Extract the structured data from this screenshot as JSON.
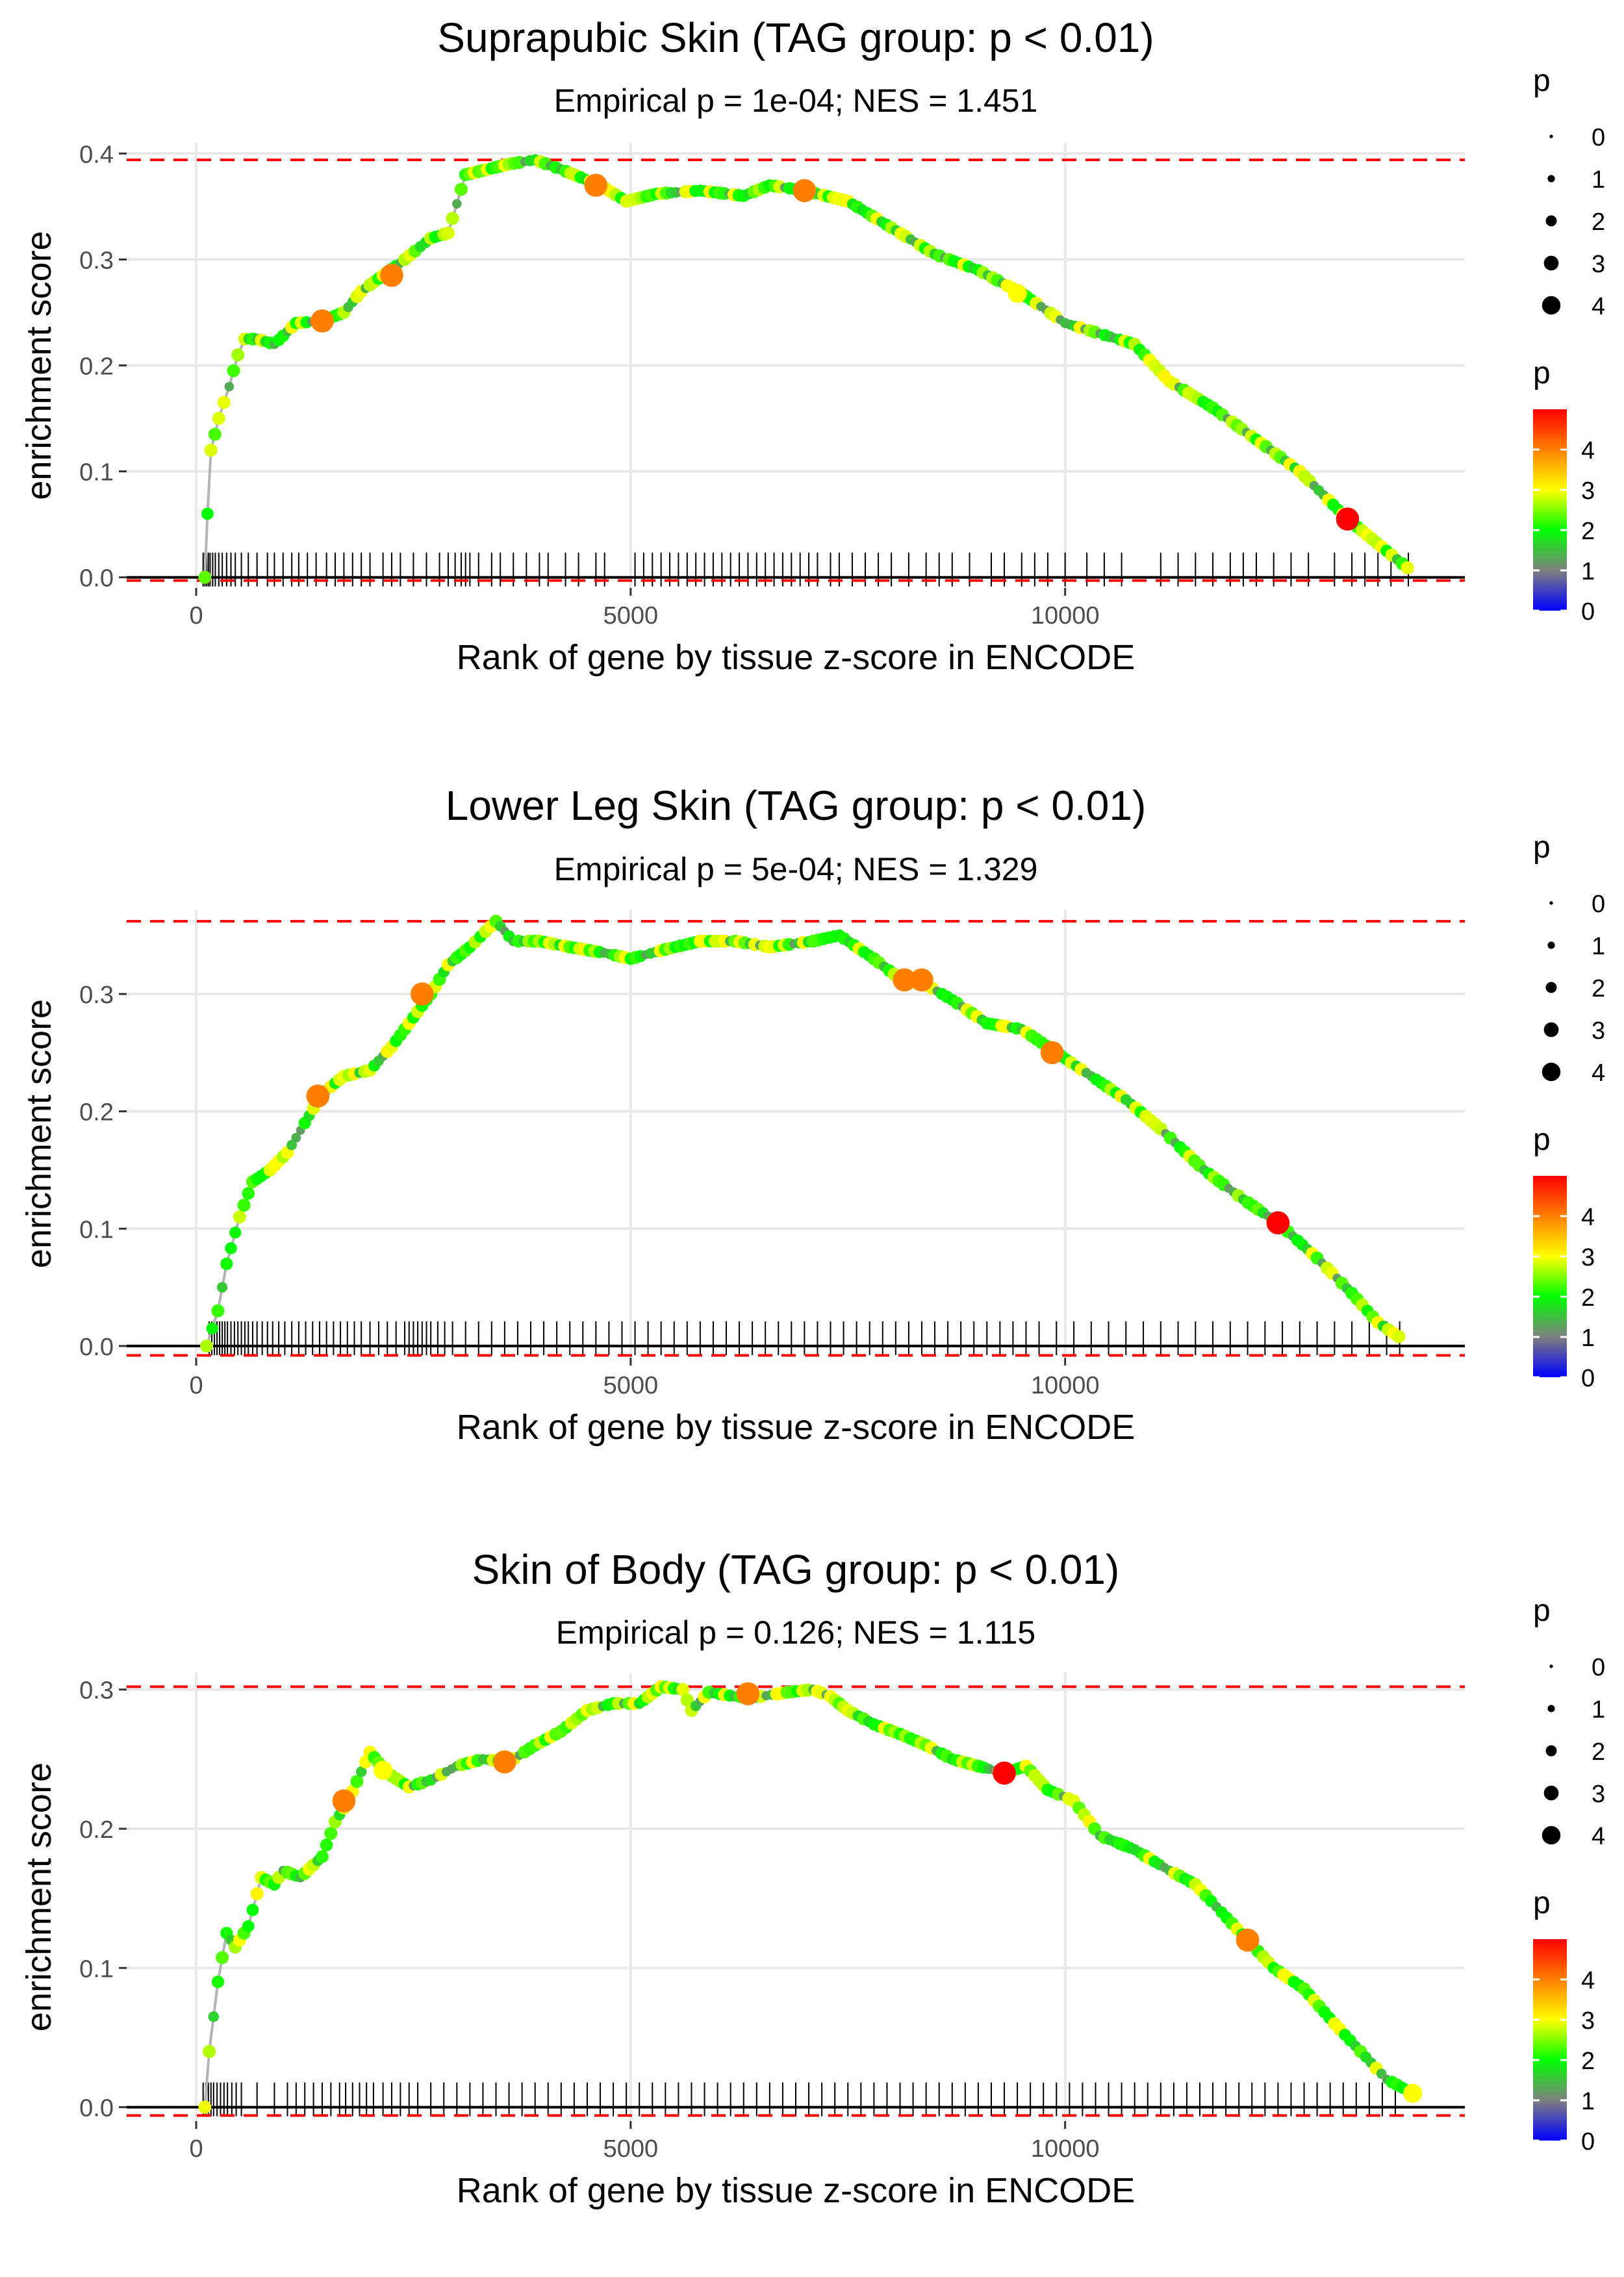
{
  "colors": {
    "gridline": "#e8e8e8",
    "curve_line": "#b4b4b4",
    "threshold_line": "#ff0000",
    "zero_line": "#000000",
    "tick_mark": "#000000",
    "scale_p0": "#0000ff",
    "scale_p1": "#7f7f7f",
    "scale_p2": "#00ff00",
    "scale_p3": "#ffff00",
    "scale_p4": "#ff0000"
  },
  "chart_data": [
    {
      "type": "line",
      "title": "Suprapubic Skin (TAG group: p < 0.01)",
      "subtitle": "Empirical p = 1e-04; NES = 1.451",
      "xlabel": "Rank of gene by tissue z-score in ENCODE",
      "ylabel": "enrichment score",
      "xlim": [
        -800,
        14600
      ],
      "ylim": [
        -0.01,
        0.41
      ],
      "xticks": [
        0,
        5000,
        10000
      ],
      "xtick_labels": [
        "0",
        "5000",
        "10000"
      ],
      "yticks": [
        0.0,
        0.1,
        0.2,
        0.3,
        0.4
      ],
      "ytick_labels": [
        "0.0",
        "0.1",
        "0.2",
        "0.3",
        "0.4"
      ],
      "max_es": 0.394,
      "min_es": -0.003,
      "curve": [
        [
          100,
          0.0
        ],
        [
          130,
          0.06
        ],
        [
          170,
          0.12
        ],
        [
          260,
          0.15
        ],
        [
          380,
          0.18
        ],
        [
          480,
          0.21
        ],
        [
          560,
          0.225
        ],
        [
          700,
          0.225
        ],
        [
          900,
          0.22
        ],
        [
          1150,
          0.24
        ],
        [
          1450,
          0.242
        ],
        [
          1700,
          0.25
        ],
        [
          1900,
          0.27
        ],
        [
          2150,
          0.285
        ],
        [
          2400,
          0.3
        ],
        [
          2700,
          0.32
        ],
        [
          2900,
          0.325
        ],
        [
          3100,
          0.38
        ],
        [
          3350,
          0.385
        ],
        [
          3600,
          0.39
        ],
        [
          3900,
          0.394
        ],
        [
          4200,
          0.385
        ],
        [
          4650,
          0.37
        ],
        [
          4950,
          0.355
        ],
        [
          5300,
          0.362
        ],
        [
          5800,
          0.365
        ],
        [
          6300,
          0.36
        ],
        [
          6600,
          0.37
        ],
        [
          7000,
          0.365
        ],
        [
          7500,
          0.355
        ],
        [
          8000,
          0.33
        ],
        [
          8500,
          0.305
        ],
        [
          9000,
          0.29
        ],
        [
          9500,
          0.268
        ],
        [
          10000,
          0.24
        ],
        [
          10400,
          0.23
        ],
        [
          10800,
          0.22
        ],
        [
          11200,
          0.185
        ],
        [
          11700,
          0.16
        ],
        [
          12200,
          0.13
        ],
        [
          12700,
          0.1
        ],
        [
          13250,
          0.055
        ],
        [
          13700,
          0.025
        ],
        [
          14000,
          0.005
        ]
      ],
      "highlight_points": [
        [
          1450,
          0.242,
          4
        ],
        [
          2250,
          0.285,
          4
        ],
        [
          4600,
          0.37,
          4
        ],
        [
          7000,
          0.365,
          4
        ],
        [
          9450,
          0.268,
          3
        ],
        [
          13250,
          0.055,
          5
        ]
      ],
      "gene_ticks": [
        80,
        100,
        120,
        140,
        160,
        190,
        220,
        260,
        300,
        350,
        400,
        450,
        520,
        600,
        700,
        820,
        900,
        1000,
        1100,
        1180,
        1280,
        1380,
        1500,
        1600,
        1700,
        1800,
        1900,
        2000,
        2150,
        2250,
        2350,
        2500,
        2650,
        2800,
        2900,
        2980,
        3050,
        3100,
        3150,
        3250,
        3400,
        3500,
        3650,
        3800,
        3950,
        4050,
        4250,
        4400,
        4600,
        4700,
        5050,
        5150,
        5250,
        5350,
        5450,
        5550,
        5650,
        5750,
        5850,
        5950,
        6050,
        6150,
        6250,
        6350,
        6450,
        6550,
        6650,
        6750,
        6850,
        6950,
        7050,
        7150,
        7300,
        7400,
        7550,
        7700,
        7850,
        8000,
        8200,
        8400,
        8550,
        8700,
        8900,
        9150,
        9300,
        9500,
        9650,
        9800,
        10000,
        10250,
        10450,
        10650,
        11100,
        11300,
        11500,
        11700,
        11900,
        12050,
        12200,
        12400,
        12600,
        12800,
        13100,
        13300,
        13450,
        13600,
        13750,
        13950
      ]
    },
    {
      "type": "line",
      "title": "Lower Leg Skin (TAG group: p < 0.01)",
      "subtitle": "Empirical p = 5e-04; NES = 1.329",
      "xlabel": "Rank of gene by tissue z-score in ENCODE",
      "ylabel": "enrichment score",
      "xlim": [
        -800,
        14600
      ],
      "ylim": [
        -0.01,
        0.372
      ],
      "xticks": [
        0,
        5000,
        10000
      ],
      "xtick_labels": [
        "0",
        "5000",
        "10000"
      ],
      "yticks": [
        0.0,
        0.1,
        0.2,
        0.3
      ],
      "ytick_labels": [
        "0.0",
        "0.1",
        "0.2",
        "0.3"
      ],
      "max_es": 0.362,
      "min_es": -0.008,
      "curve": [
        [
          120,
          0.0
        ],
        [
          250,
          0.03
        ],
        [
          350,
          0.07
        ],
        [
          500,
          0.11
        ],
        [
          650,
          0.14
        ],
        [
          850,
          0.15
        ],
        [
          1050,
          0.165
        ],
        [
          1250,
          0.19
        ],
        [
          1450,
          0.215
        ],
        [
          1700,
          0.23
        ],
        [
          2000,
          0.235
        ],
        [
          2250,
          0.255
        ],
        [
          2500,
          0.28
        ],
        [
          2700,
          0.3
        ],
        [
          2900,
          0.325
        ],
        [
          3150,
          0.34
        ],
        [
          3450,
          0.362
        ],
        [
          3650,
          0.345
        ],
        [
          3950,
          0.345
        ],
        [
          4300,
          0.34
        ],
        [
          4700,
          0.335
        ],
        [
          5000,
          0.33
        ],
        [
          5400,
          0.338
        ],
        [
          5800,
          0.345
        ],
        [
          6200,
          0.345
        ],
        [
          6600,
          0.34
        ],
        [
          7100,
          0.345
        ],
        [
          7400,
          0.35
        ],
        [
          7800,
          0.33
        ],
        [
          8150,
          0.31
        ],
        [
          8350,
          0.31
        ],
        [
          8700,
          0.295
        ],
        [
          9100,
          0.275
        ],
        [
          9500,
          0.27
        ],
        [
          9900,
          0.25
        ],
        [
          10300,
          0.23
        ],
        [
          10700,
          0.21
        ],
        [
          11100,
          0.185
        ],
        [
          11600,
          0.15
        ],
        [
          12050,
          0.125
        ],
        [
          12450,
          0.105
        ],
        [
          12900,
          0.075
        ],
        [
          13300,
          0.045
        ],
        [
          13600,
          0.02
        ],
        [
          13900,
          0.005
        ]
      ],
      "highlight_points": [
        [
          1400,
          0.213,
          4
        ],
        [
          2600,
          0.3,
          4
        ],
        [
          8150,
          0.312,
          4
        ],
        [
          8350,
          0.312,
          4
        ],
        [
          9850,
          0.25,
          4
        ],
        [
          12450,
          0.105,
          5
        ]
      ],
      "gene_ticks": [
        150,
        180,
        210,
        240,
        270,
        300,
        330,
        360,
        400,
        440,
        480,
        520,
        560,
        600,
        650,
        700,
        760,
        820,
        880,
        950,
        1020,
        1100,
        1180,
        1260,
        1340,
        1420,
        1500,
        1580,
        1660,
        1740,
        1820,
        1900,
        2000,
        2100,
        2200,
        2300,
        2400,
        2450,
        2500,
        2550,
        2600,
        2650,
        2700,
        2780,
        2860,
        2950,
        3100,
        3250,
        3400,
        3550,
        3700,
        3850,
        4000,
        4150,
        4300,
        4450,
        4600,
        4750,
        4900,
        5050,
        5200,
        5350,
        5500,
        5650,
        5800,
        5950,
        6100,
        6250,
        6400,
        6550,
        6700,
        6850,
        7000,
        7150,
        7300,
        7450,
        7600,
        7750,
        7900,
        8050,
        8200,
        8350,
        8500,
        8650,
        8800,
        8950,
        9100,
        9250,
        9400,
        9550,
        9700,
        9900,
        10100,
        10300,
        10500,
        10700,
        10900,
        11100,
        11300,
        11500,
        11700,
        11900,
        12100,
        12300,
        12500,
        12700,
        12900,
        13100,
        13300,
        13500,
        13700,
        13850
      ]
    },
    {
      "type": "line",
      "title": "Skin of Body (TAG group: p < 0.01)",
      "subtitle": "Empirical p = 0.126; NES = 1.115",
      "xlabel": "Rank of gene by tissue z-score in ENCODE",
      "ylabel": "enrichment score",
      "xlim": [
        -800,
        14600
      ],
      "ylim": [
        -0.01,
        0.312
      ],
      "xticks": [
        0,
        5000,
        10000
      ],
      "xtick_labels": [
        "0",
        "5000",
        "10000"
      ],
      "yticks": [
        0.0,
        0.1,
        0.2,
        0.3
      ],
      "ytick_labels": [
        "0.0",
        "0.1",
        "0.2",
        "0.3"
      ],
      "max_es": 0.302,
      "min_es": -0.006,
      "curve": [
        [
          100,
          0.0
        ],
        [
          150,
          0.04
        ],
        [
          250,
          0.09
        ],
        [
          350,
          0.125
        ],
        [
          450,
          0.115
        ],
        [
          600,
          0.13
        ],
        [
          750,
          0.165
        ],
        [
          900,
          0.16
        ],
        [
          1000,
          0.17
        ],
        [
          1200,
          0.165
        ],
        [
          1450,
          0.18
        ],
        [
          1600,
          0.205
        ],
        [
          1750,
          0.22
        ],
        [
          2000,
          0.255
        ],
        [
          2200,
          0.24
        ],
        [
          2450,
          0.23
        ],
        [
          2700,
          0.235
        ],
        [
          3000,
          0.245
        ],
        [
          3300,
          0.25
        ],
        [
          3600,
          0.248
        ],
        [
          3900,
          0.26
        ],
        [
          4200,
          0.27
        ],
        [
          4500,
          0.285
        ],
        [
          4800,
          0.29
        ],
        [
          5100,
          0.29
        ],
        [
          5350,
          0.302
        ],
        [
          5600,
          0.3
        ],
        [
          5700,
          0.285
        ],
        [
          5900,
          0.298
        ],
        [
          6200,
          0.295
        ],
        [
          6500,
          0.295
        ],
        [
          6800,
          0.298
        ],
        [
          7100,
          0.3
        ],
        [
          7300,
          0.295
        ],
        [
          7500,
          0.285
        ],
        [
          7800,
          0.275
        ],
        [
          8100,
          0.268
        ],
        [
          8400,
          0.26
        ],
        [
          8700,
          0.25
        ],
        [
          9000,
          0.245
        ],
        [
          9300,
          0.24
        ],
        [
          9550,
          0.245
        ],
        [
          9800,
          0.228
        ],
        [
          10100,
          0.22
        ],
        [
          10400,
          0.195
        ],
        [
          10800,
          0.185
        ],
        [
          11200,
          0.17
        ],
        [
          11500,
          0.16
        ],
        [
          11800,
          0.14
        ],
        [
          12100,
          0.12
        ],
        [
          12400,
          0.1
        ],
        [
          12750,
          0.085
        ],
        [
          13100,
          0.06
        ],
        [
          13400,
          0.04
        ],
        [
          13700,
          0.02
        ],
        [
          14000,
          0.01
        ]
      ],
      "highlight_points": [
        [
          1700,
          0.22,
          4
        ],
        [
          2150,
          0.242,
          3
        ],
        [
          3550,
          0.248,
          4
        ],
        [
          6350,
          0.297,
          4
        ],
        [
          9300,
          0.24,
          5
        ],
        [
          12100,
          0.12,
          4
        ],
        [
          14000,
          0.01,
          3
        ]
      ],
      "gene_ticks": [
        80,
        110,
        140,
        170,
        200,
        240,
        280,
        320,
        360,
        410,
        460,
        520,
        700,
        900,
        1050,
        1150,
        1250,
        1350,
        1450,
        1550,
        1650,
        1720,
        1800,
        1880,
        1960,
        2040,
        2150,
        2250,
        2350,
        2450,
        2550,
        2700,
        2850,
        3000,
        3150,
        3300,
        3450,
        3600,
        3750,
        3900,
        4050,
        4200,
        4350,
        4500,
        4650,
        4800,
        4950,
        5100,
        5250,
        5400,
        5550,
        5700,
        5850,
        6000,
        6150,
        6300,
        6450,
        6600,
        6750,
        6900,
        7050,
        7200,
        7350,
        7500,
        7650,
        7800,
        7950,
        8100,
        8250,
        8400,
        8550,
        8700,
        8850,
        9000,
        9150,
        9300,
        9450,
        9600,
        9750,
        9900,
        10050,
        10200,
        10350,
        10500,
        10650,
        10800,
        10950,
        11100,
        11250,
        11400,
        11550,
        11700,
        11850,
        12000,
        12150,
        12300,
        12450,
        12600,
        12750,
        12900,
        13050,
        13200,
        13350,
        13500,
        13650,
        13800
      ]
    }
  ],
  "legend": {
    "size_title": "p",
    "size_labels": [
      "0",
      "1",
      "2",
      "3",
      "4"
    ],
    "color_title": "p",
    "color_labels": [
      "4",
      "3",
      "2",
      "1",
      "0"
    ]
  }
}
